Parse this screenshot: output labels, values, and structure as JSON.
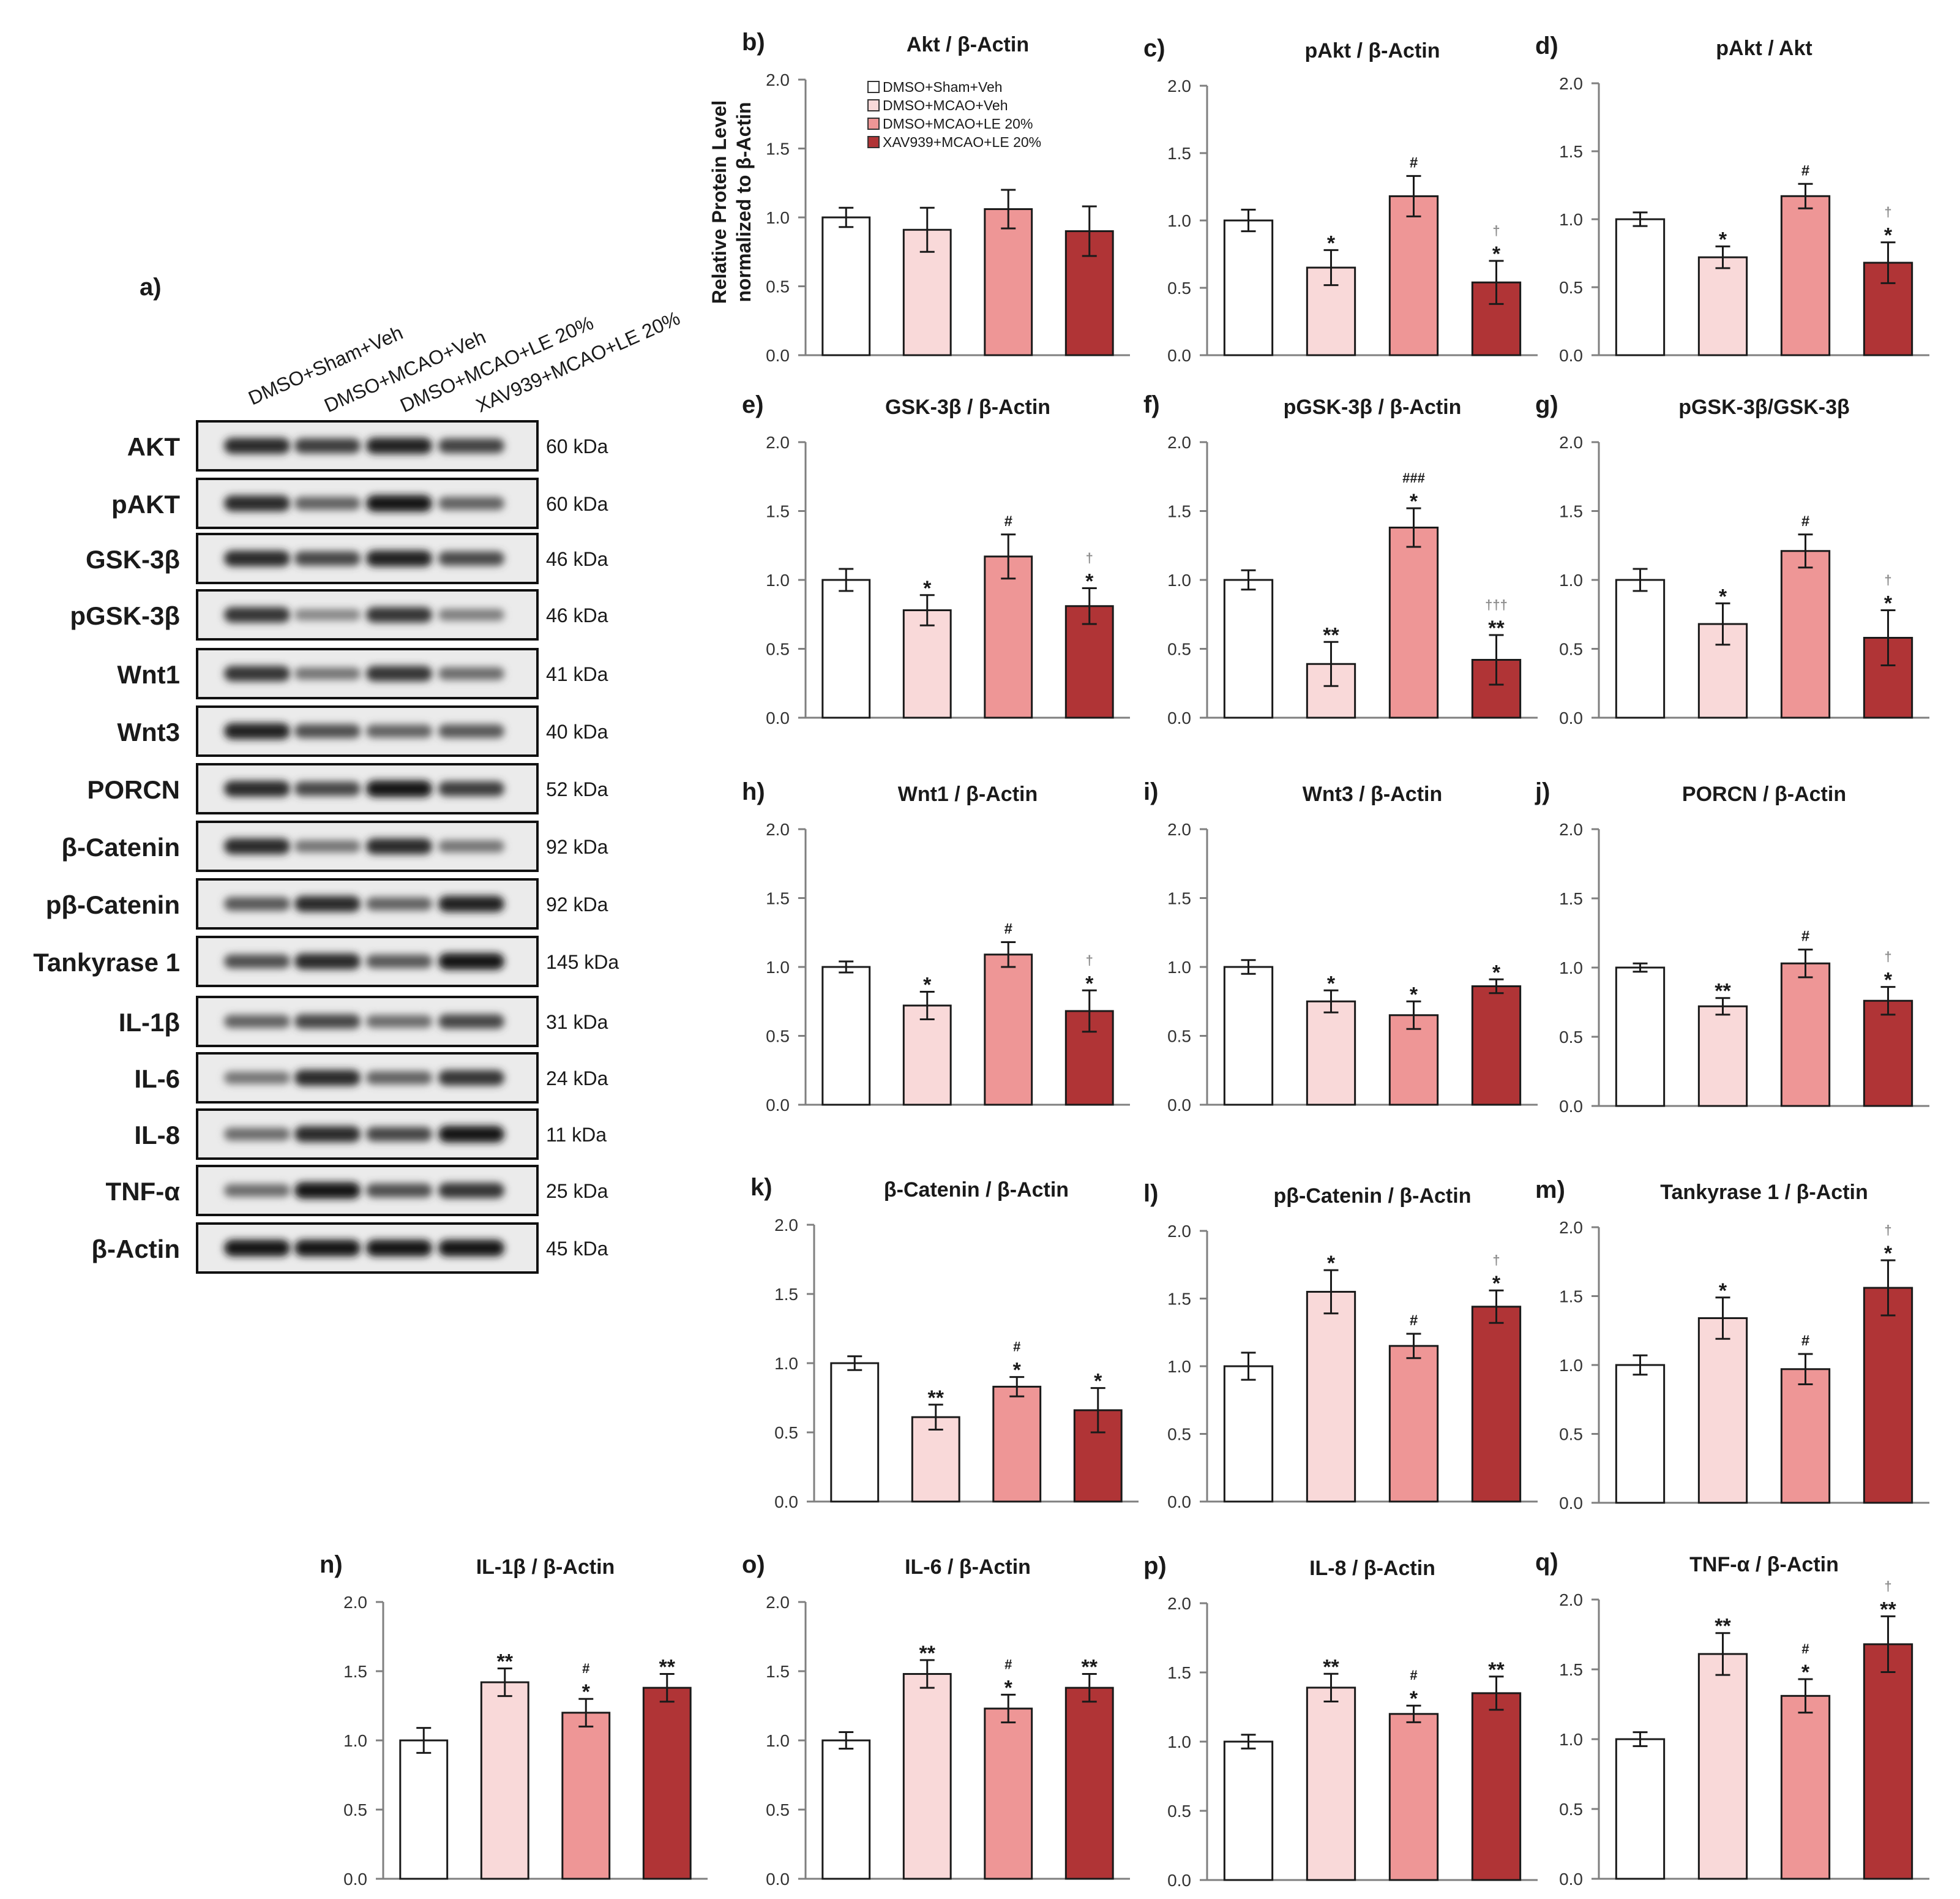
{
  "colors": {
    "bars": [
      "#ffffff",
      "#f9d9d9",
      "#ee9696",
      "#b03436"
    ],
    "axis": "#7f7f7f",
    "text": "#1a1a1a",
    "dagger": "#8c8c8c"
  },
  "legend": [
    "DMSO+Sham+Veh",
    "DMSO+MCAO+Veh",
    "DMSO+MCAO+LE 20%",
    "XAV939+MCAO+LE 20%"
  ],
  "ylabel_line1": "Relative Protein Level",
  "ylabel_line2": "normalized to β-Actin",
  "blot": {
    "panel_label": "a)",
    "lane_labels": [
      "DMSO+Sham+Veh",
      "DMSO+MCAO+Veh",
      "DMSO+MCAO+LE 20%",
      "XAV939+MCAO+LE 20%"
    ],
    "rows": [
      {
        "name": "AKT",
        "kda": "60 kDa",
        "intensity": [
          0.85,
          0.75,
          0.9,
          0.72
        ]
      },
      {
        "name": "pAKT",
        "kda": "60 kDa",
        "intensity": [
          0.85,
          0.55,
          0.95,
          0.55
        ]
      },
      {
        "name": "GSK-3β",
        "kda": "46 kDa",
        "intensity": [
          0.85,
          0.7,
          0.9,
          0.68
        ]
      },
      {
        "name": "pGSK-3β",
        "kda": "46 kDa",
        "intensity": [
          0.8,
          0.35,
          0.8,
          0.4
        ]
      },
      {
        "name": "Wnt1",
        "kda": "41 kDa",
        "intensity": [
          0.8,
          0.45,
          0.8,
          0.5
        ]
      },
      {
        "name": "Wnt3",
        "kda": "40 kDa",
        "intensity": [
          0.9,
          0.65,
          0.55,
          0.6
        ]
      },
      {
        "name": "PORCN",
        "kda": "52 kDa",
        "intensity": [
          0.85,
          0.7,
          0.95,
          0.75
        ]
      },
      {
        "name": "β-Catenin",
        "kda": "92 kDa",
        "intensity": [
          0.85,
          0.45,
          0.85,
          0.45
        ]
      },
      {
        "name": "pβ-Catenin",
        "kda": "92 kDa",
        "intensity": [
          0.6,
          0.85,
          0.55,
          0.9
        ]
      },
      {
        "name": "Tankyrase 1",
        "kda": "145 kDa",
        "intensity": [
          0.65,
          0.85,
          0.6,
          0.95
        ]
      },
      {
        "name": "IL-1β",
        "kda": "31 kDa",
        "intensity": [
          0.55,
          0.7,
          0.5,
          0.7
        ]
      },
      {
        "name": "IL-6",
        "kda": "24 kDa",
        "intensity": [
          0.45,
          0.85,
          0.55,
          0.8
        ]
      },
      {
        "name": "IL-8",
        "kda": "11 kDa",
        "intensity": [
          0.5,
          0.85,
          0.7,
          0.95
        ]
      },
      {
        "name": "TNF-α",
        "kda": "25 kDa",
        "intensity": [
          0.5,
          0.95,
          0.65,
          0.8
        ]
      },
      {
        "name": "β-Actin",
        "kda": "45 kDa",
        "intensity": [
          0.95,
          0.95,
          0.95,
          0.95
        ]
      }
    ]
  },
  "chart_data": [
    {
      "type": "bar",
      "panel": "b)",
      "title": "Akt / β-Actin",
      "ylim": [
        0,
        2
      ],
      "yticks": [
        "0.0",
        "0.5",
        "1.0",
        "1.5",
        "2.0"
      ],
      "values": [
        1.0,
        0.91,
        1.06,
        0.9
      ],
      "errors": [
        0.07,
        0.16,
        0.14,
        0.18
      ],
      "sig": [
        "",
        "",
        "",
        ""
      ],
      "dagger": [
        "",
        "",
        "",
        ""
      ]
    },
    {
      "type": "bar",
      "panel": "c)",
      "title": "pAkt / β-Actin",
      "ylim": [
        0,
        2
      ],
      "yticks": [
        "0.0",
        "0.5",
        "1.0",
        "1.5",
        "2.0"
      ],
      "values": [
        1.0,
        0.65,
        1.18,
        0.54
      ],
      "errors": [
        0.08,
        0.13,
        0.15,
        0.16
      ],
      "sig": [
        "",
        "*",
        "#",
        "*"
      ],
      "dagger": [
        "",
        "",
        "",
        "†"
      ]
    },
    {
      "type": "bar",
      "panel": "d)",
      "title": "pAkt / Akt",
      "ylim": [
        0,
        2
      ],
      "yticks": [
        "0.0",
        "0.5",
        "1.0",
        "1.5",
        "2.0"
      ],
      "values": [
        1.0,
        0.72,
        1.17,
        0.68
      ],
      "errors": [
        0.05,
        0.08,
        0.09,
        0.15
      ],
      "sig": [
        "",
        "*",
        "#",
        "*"
      ],
      "dagger": [
        "",
        "",
        "",
        "†"
      ]
    },
    {
      "type": "bar",
      "panel": "e)",
      "title": "GSK-3β / β-Actin",
      "ylim": [
        0,
        2
      ],
      "yticks": [
        "0.0",
        "0.5",
        "1.0",
        "1.5",
        "2.0"
      ],
      "values": [
        1.0,
        0.78,
        1.17,
        0.81
      ],
      "errors": [
        0.08,
        0.11,
        0.16,
        0.13
      ],
      "sig": [
        "",
        "*",
        "#",
        "*"
      ],
      "dagger": [
        "",
        "",
        "",
        "†"
      ]
    },
    {
      "type": "bar",
      "panel": "f)",
      "title": "pGSK-3β / β-Actin",
      "ylim": [
        0,
        2
      ],
      "yticks": [
        "0.0",
        "0.5",
        "1.0",
        "1.5",
        "2.0"
      ],
      "values": [
        1.0,
        0.39,
        1.38,
        0.42
      ],
      "errors": [
        0.07,
        0.16,
        0.14,
        0.18
      ],
      "sig": [
        "",
        "**",
        "*",
        "**"
      ],
      "sig2": [
        "",
        "",
        "###",
        ""
      ],
      "dagger": [
        "",
        "",
        "",
        "†††"
      ]
    },
    {
      "type": "bar",
      "panel": "g)",
      "title": "pGSK-3β/GSK-3β",
      "ylim": [
        0,
        2
      ],
      "yticks": [
        "0.0",
        "0.5",
        "1.0",
        "1.5",
        "2.0"
      ],
      "values": [
        1.0,
        0.68,
        1.21,
        0.58
      ],
      "errors": [
        0.08,
        0.15,
        0.12,
        0.2
      ],
      "sig": [
        "",
        "*",
        "#",
        "*"
      ],
      "dagger": [
        "",
        "",
        "",
        "†"
      ]
    },
    {
      "type": "bar",
      "panel": "h)",
      "title": "Wnt1 / β-Actin",
      "ylim": [
        0,
        2
      ],
      "yticks": [
        "0.0",
        "0.5",
        "1.0",
        "1.5",
        "2.0"
      ],
      "values": [
        1.0,
        0.72,
        1.09,
        0.68
      ],
      "errors": [
        0.04,
        0.1,
        0.09,
        0.15
      ],
      "sig": [
        "",
        "*",
        "#",
        "*"
      ],
      "dagger": [
        "",
        "",
        "",
        "†"
      ]
    },
    {
      "type": "bar",
      "panel": "i)",
      "title": "Wnt3 / β-Actin",
      "ylim": [
        0,
        2
      ],
      "yticks": [
        "0.0",
        "0.5",
        "1.0",
        "1.5",
        "2.0"
      ],
      "values": [
        1.0,
        0.75,
        0.65,
        0.86
      ],
      "errors": [
        0.05,
        0.08,
        0.1,
        0.05
      ],
      "sig": [
        "",
        "*",
        "*",
        "*"
      ],
      "dagger": [
        "",
        "",
        "",
        ""
      ]
    },
    {
      "type": "bar",
      "panel": "j)",
      "title": "PORCN / β-Actin",
      "ylim": [
        0,
        2
      ],
      "yticks": [
        "0.0",
        "0.5",
        "1.0",
        "1.5",
        "2.0"
      ],
      "values": [
        1.0,
        0.72,
        1.03,
        0.76
      ],
      "errors": [
        0.03,
        0.06,
        0.1,
        0.1
      ],
      "sig": [
        "",
        "**",
        "#",
        "*"
      ],
      "dagger": [
        "",
        "",
        "",
        "†"
      ]
    },
    {
      "type": "bar",
      "panel": "k)",
      "title": "β-Catenin  / β-Actin",
      "ylim": [
        0,
        2
      ],
      "yticks": [
        "0.0",
        "0.5",
        "1.0",
        "1.5",
        "2.0"
      ],
      "values": [
        1.0,
        0.61,
        0.83,
        0.66
      ],
      "errors": [
        0.05,
        0.09,
        0.07,
        0.16
      ],
      "sig": [
        "",
        "**",
        "*",
        "*"
      ],
      "sig2": [
        "",
        "",
        "#",
        ""
      ],
      "dagger": [
        "",
        "",
        "",
        ""
      ]
    },
    {
      "type": "bar",
      "panel": "l)",
      "title": "pβ-Catenin  / β-Actin",
      "ylim": [
        0,
        2
      ],
      "yticks": [
        "0.0",
        "0.5",
        "1.0",
        "1.5",
        "2.0"
      ],
      "values": [
        1.0,
        1.55,
        1.15,
        1.44
      ],
      "errors": [
        0.1,
        0.16,
        0.09,
        0.12
      ],
      "sig": [
        "",
        "*",
        "#",
        "*"
      ],
      "dagger": [
        "",
        "",
        "",
        "†"
      ]
    },
    {
      "type": "bar",
      "panel": "m)",
      "title": "Tankyrase 1 / β-Actin",
      "ylim": [
        0,
        2
      ],
      "yticks": [
        "0.0",
        "0.5",
        "1.0",
        "1.5",
        "2.0"
      ],
      "values": [
        1.0,
        1.34,
        0.97,
        1.56
      ],
      "errors": [
        0.07,
        0.15,
        0.11,
        0.2
      ],
      "sig": [
        "",
        "*",
        "#",
        "*"
      ],
      "dagger": [
        "",
        "",
        "",
        "†"
      ]
    },
    {
      "type": "bar",
      "panel": "n)",
      "title": "IL-1β / β-Actin",
      "ylim": [
        0,
        2
      ],
      "yticks": [
        "0.0",
        "0.5",
        "1.0",
        "1.5",
        "2.0"
      ],
      "values": [
        1.0,
        1.42,
        1.2,
        1.38
      ],
      "errors": [
        0.09,
        0.1,
        0.1,
        0.1
      ],
      "sig": [
        "",
        "**",
        "*",
        "**"
      ],
      "sig2": [
        "",
        "",
        "#",
        ""
      ],
      "dagger": [
        "",
        "",
        "",
        ""
      ]
    },
    {
      "type": "bar",
      "panel": "o)",
      "title": "IL-6 / β-Actin",
      "ylim": [
        0,
        2
      ],
      "yticks": [
        "0.0",
        "0.5",
        "1.0",
        "1.5",
        "2.0"
      ],
      "values": [
        1.0,
        1.48,
        1.23,
        1.38
      ],
      "errors": [
        0.06,
        0.1,
        0.1,
        0.1
      ],
      "sig": [
        "",
        "**",
        "*",
        "**"
      ],
      "sig2": [
        "",
        "",
        "#",
        ""
      ],
      "dagger": [
        "",
        "",
        "",
        ""
      ]
    },
    {
      "type": "bar",
      "panel": "p)",
      "title": "IL-8 / β-Actin",
      "ylim": [
        0,
        2
      ],
      "yticks": [
        "0.0",
        "0.5",
        "1.0",
        "1.5",
        "2.0"
      ],
      "values": [
        1.0,
        1.39,
        1.2,
        1.35
      ],
      "errors": [
        0.05,
        0.1,
        0.06,
        0.12
      ],
      "sig": [
        "",
        "**",
        "*",
        "**"
      ],
      "sig2": [
        "",
        "",
        "#",
        ""
      ],
      "dagger": [
        "",
        "",
        "",
        ""
      ]
    },
    {
      "type": "bar",
      "panel": "q)",
      "title": "TNF-α / β-Actin",
      "ylim": [
        0,
        2
      ],
      "yticks": [
        "0.0",
        "0.5",
        "1.0",
        "1.5",
        "2.0"
      ],
      "values": [
        1.0,
        1.61,
        1.31,
        1.68
      ],
      "errors": [
        0.05,
        0.15,
        0.12,
        0.2
      ],
      "sig": [
        "",
        "**",
        "*",
        "**"
      ],
      "sig2": [
        "",
        "",
        "#",
        ""
      ],
      "dagger": [
        "",
        "",
        "",
        "†"
      ]
    }
  ]
}
